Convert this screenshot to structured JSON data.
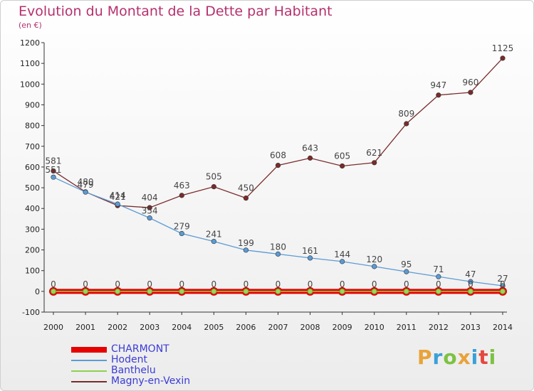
{
  "title": "Evolution du Montant de la Dette par Habitant",
  "subtitle": "(en €)",
  "brand": {
    "text": "Proxiti",
    "colors": [
      "#e8a33a",
      "#3aa0d8",
      "#7cc242",
      "#e8a33a",
      "#3aa0d8",
      "#e5473f",
      "#7cc242"
    ]
  },
  "chart_data": {
    "type": "line",
    "x": [
      "2000",
      "2001",
      "2002",
      "2003",
      "2004",
      "2005",
      "2006",
      "2007",
      "2008",
      "2009",
      "2010",
      "2011",
      "2012",
      "2013",
      "2014"
    ],
    "ylim": [
      -100,
      1200
    ],
    "yticks": [
      "-100",
      "0",
      "100",
      "200",
      "300",
      "400",
      "500",
      "600",
      "700",
      "800",
      "900",
      "1000",
      "1100",
      "1200"
    ],
    "grid": false,
    "legend_position": "bottom-left",
    "series": [
      {
        "name": "CHARMONT",
        "color": "#e60000",
        "values": [
          0,
          0,
          0,
          0,
          0,
          0,
          0,
          0,
          0,
          0,
          0,
          0,
          0,
          0,
          0
        ],
        "labels": [
          "",
          "",
          "",
          "",
          "",
          "",
          "",
          "",
          "",
          "",
          "",
          "",
          "",
          "",
          ""
        ]
      },
      {
        "name": "Hodent",
        "color": "#5b9bd5",
        "values": [
          551,
          479,
          421,
          354,
          279,
          241,
          199,
          180,
          161,
          144,
          120,
          95,
          71,
          47,
          27
        ],
        "labels": [
          "551",
          "479",
          "421",
          "354",
          "279",
          "241",
          "199",
          "180",
          "161",
          "144",
          "120",
          "95",
          "71",
          "47",
          "27"
        ]
      },
      {
        "name": "Banthelu",
        "color": "#8fd14f",
        "values": [
          0,
          0,
          0,
          0,
          0,
          0,
          0,
          0,
          0,
          0,
          0,
          0,
          0,
          0,
          0
        ],
        "labels": [
          "0",
          "0",
          "0",
          "0",
          "0",
          "0",
          "0",
          "0",
          "0",
          "0",
          "0",
          "0",
          "0",
          "0",
          "0"
        ]
      },
      {
        "name": "Magny-en-Vexin",
        "color": "#7a2b2b",
        "values": [
          581,
          480,
          414,
          404,
          463,
          505,
          450,
          608,
          643,
          605,
          621,
          809,
          947,
          960,
          1125
        ],
        "labels": [
          "581",
          "480",
          "414",
          "404",
          "463",
          "505",
          "450",
          "608",
          "643",
          "605",
          "621",
          "809",
          "947",
          "960",
          "1125"
        ]
      }
    ],
    "zero_labels": [
      "0",
      "0",
      "0",
      "0",
      "0",
      "0",
      "0",
      "0",
      "0",
      "0",
      "0",
      "0",
      "0",
      "0",
      "0"
    ]
  }
}
